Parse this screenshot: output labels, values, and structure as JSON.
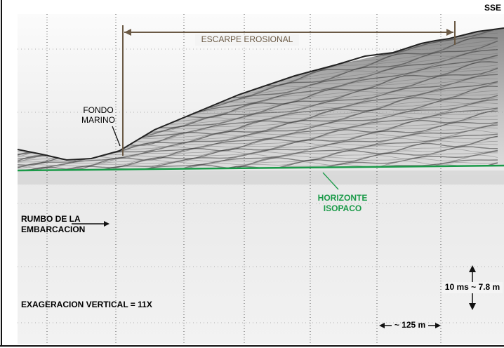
{
  "corner_label": "SSE",
  "escarpe": "ESCARPE EROSIONAL",
  "fondo_marino": [
    "FONDO",
    "MARINO"
  ],
  "horizonte": [
    "HORIZONTE",
    "ISOPACO"
  ],
  "rumbo": [
    "RUMBO DE LA",
    "EMBARCACION"
  ],
  "exageracion": "EXAGERACION VERTICAL = 11X",
  "vertical_scale": "10 ms ~ 7.8 m",
  "horizontal_scale": "~ 125 m"
}
